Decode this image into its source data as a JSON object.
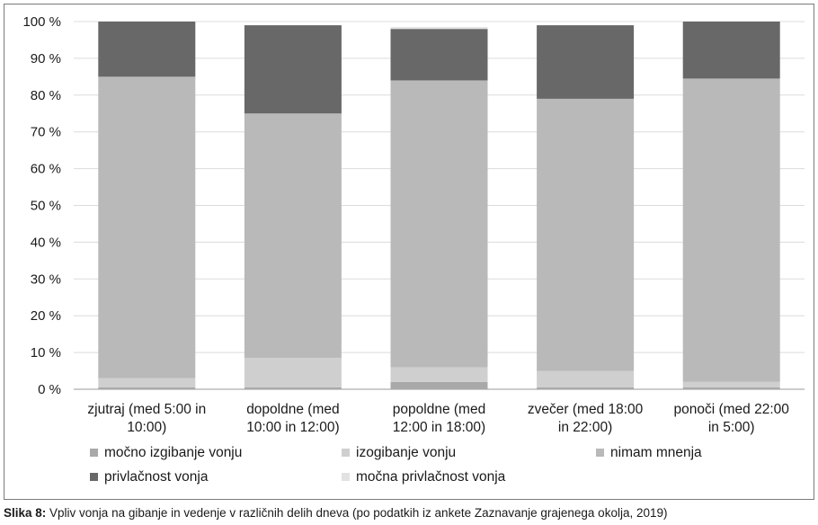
{
  "chart_data": {
    "type": "bar",
    "stacked": true,
    "categories": [
      [
        "zjutraj (med 5:00 in",
        "10:00)"
      ],
      [
        "dopoldne (med",
        "10:00 in 12:00)"
      ],
      [
        "popoldne (med",
        "12:00 in 18:00)"
      ],
      [
        "zvečer (med 18:00",
        "in 22:00)"
      ],
      [
        "ponoči (med 22:00",
        "in 5:00)"
      ]
    ],
    "series": [
      {
        "name": "močno izgibanje vonju",
        "color": "#a9a9a9",
        "values": [
          0.5,
          0.5,
          2,
          0.5,
          0.5
        ]
      },
      {
        "name": "izogibanje vonju",
        "color": "#cfcfcf",
        "values": [
          2.5,
          8,
          4,
          4.5,
          1.5
        ]
      },
      {
        "name": "nimam mnenja",
        "color": "#b9b9b9",
        "values": [
          82,
          66.5,
          78,
          74,
          82.5
        ]
      },
      {
        "name": "privlačnost vonja",
        "color": "#686868",
        "values": [
          15,
          24,
          14,
          20,
          15.5
        ]
      },
      {
        "name": "močna privlačnost vonja",
        "color": "#e2e2e2",
        "values": [
          0,
          0,
          0.5,
          0,
          0
        ]
      }
    ],
    "ylim": [
      0,
      100
    ],
    "yticks": [
      "0 %",
      "10 %",
      "20 %",
      "30 %",
      "40 %",
      "50 %",
      "60 %",
      "70 %",
      "80 %",
      "90 %",
      "100 %"
    ],
    "grid": true,
    "legend_position": "bottom"
  },
  "caption": {
    "label": "Slika 8:",
    "text": " Vpliv vonja na gibanje in vedenje v različnih delih dneva (po podatkih iz ankete Zaznavanje grajenega okolja, 2019)"
  }
}
